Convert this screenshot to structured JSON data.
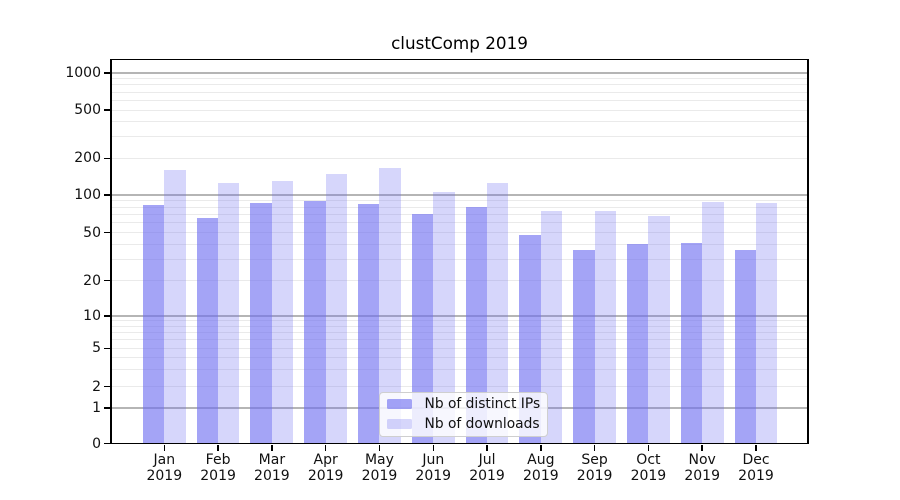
{
  "title": "clustComp 2019",
  "legend": {
    "items": [
      {
        "label": "Nb of distinct IPs"
      },
      {
        "label": "Nb of downloads"
      }
    ]
  },
  "colors": {
    "ips_bar": "rgba(108,108,240,0.62)",
    "downloads_bar": "rgba(108,108,240,0.28)",
    "grid_major": "#b5b5b5",
    "grid_minor": "#eaeaea",
    "spine": "#000000"
  },
  "axes": {
    "y_tick_values": [
      0,
      1,
      2,
      5,
      10,
      20,
      50,
      100,
      200,
      500,
      1000
    ],
    "x_months": [
      "Jan",
      "Feb",
      "Mar",
      "Apr",
      "May",
      "Jun",
      "Jul",
      "Aug",
      "Sep",
      "Oct",
      "Nov",
      "Dec"
    ],
    "x_year": "2019"
  },
  "chart_data": {
    "type": "bar",
    "title": "clustComp 2019",
    "categories": [
      "Jan 2019",
      "Feb 2019",
      "Mar 2019",
      "Apr 2019",
      "May 2019",
      "Jun 2019",
      "Jul 2019",
      "Aug 2019",
      "Sep 2019",
      "Oct 2019",
      "Nov 2019",
      "Dec 2019"
    ],
    "series": [
      {
        "name": "Nb of distinct IPs",
        "values": [
          83,
          66,
          86,
          89,
          85,
          70,
          80,
          48,
          36,
          40,
          41,
          36
        ]
      },
      {
        "name": "Nb of downloads",
        "values": [
          160,
          125,
          131,
          148,
          166,
          106,
          125,
          74,
          75,
          68,
          88,
          86
        ]
      }
    ],
    "ylabel": "",
    "xlabel": "",
    "yscale": "log-like",
    "y_ticks": [
      0,
      1,
      2,
      5,
      10,
      20,
      50,
      100,
      200,
      500,
      1000
    ],
    "ylim": [
      0,
      1300
    ],
    "grid": true,
    "legend_position": "lower center"
  }
}
